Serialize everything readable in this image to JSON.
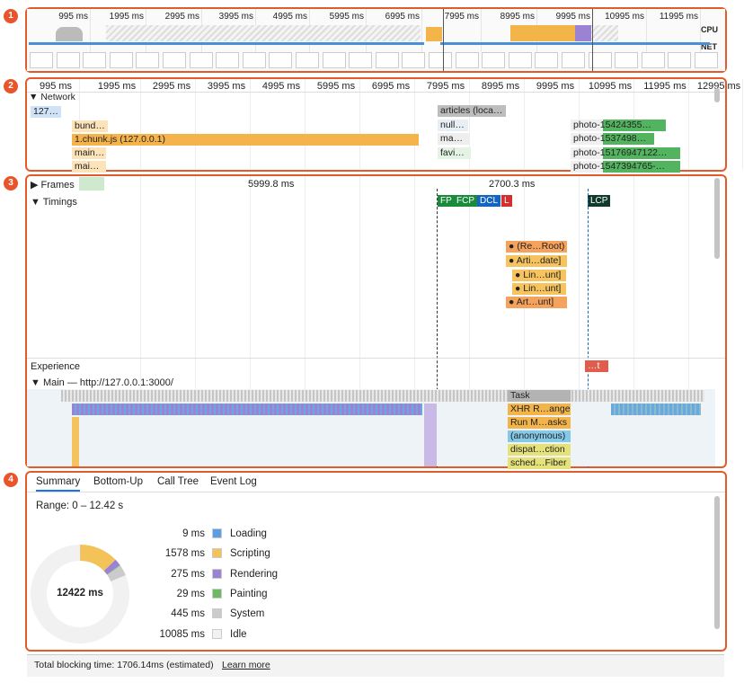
{
  "badges": [
    "1",
    "2",
    "3",
    "4"
  ],
  "overview": {
    "ticks": [
      "995 ms",
      "1995 ms",
      "2995 ms",
      "3995 ms",
      "4995 ms",
      "5995 ms",
      "6995 ms",
      "7995 ms",
      "8995 ms",
      "9995 ms",
      "10995 ms",
      "11995 ms"
    ],
    "cpu": "CPU",
    "net": "NET"
  },
  "network": {
    "ticks": [
      "995 ms",
      "1995 ms",
      "2995 ms",
      "3995 ms",
      "4995 ms",
      "5995 ms",
      "6995 ms",
      "7995 ms",
      "8995 ms",
      "9995 ms",
      "10995 ms",
      "11995 ms",
      "12995 ms"
    ],
    "title": "Network",
    "items": [
      "127…",
      "bund…",
      "1.chunk.js (127.0.0.1)",
      "main…",
      "mai…",
      "articles (loca…",
      "null…",
      "ma…",
      "favi…",
      "photo-15424355…",
      "photo-1537498…",
      "photo-15176947122…",
      "photo-1547394765-…"
    ]
  },
  "flame": {
    "frames": "Frames",
    "frame_times": [
      "5999.8 ms",
      "2700.3 ms"
    ],
    "timings": "Timings",
    "markers": [
      "FP",
      "FCP",
      "DCL",
      "L",
      "LCP"
    ],
    "timing_entries": [
      "(Re…Root)",
      "Arti…date]",
      "Lin…unt]",
      "Lin…unt]",
      "Art…unt]"
    ],
    "experience": "Experience",
    "experience_entry": "…t",
    "main": "Main — http://127.0.0.1:3000/",
    "main_entries": [
      "Task",
      "XHR R…ange",
      "Run M…asks",
      "(anonymous)",
      "dispat…ction",
      "sched…Fiber"
    ]
  },
  "summary": {
    "tabs": [
      "Summary",
      "Bottom-Up",
      "Call Tree",
      "Event Log"
    ],
    "range": "Range: 0 – 12.42 s",
    "total_ms": 12422,
    "total_label": "12422 ms",
    "rows": [
      {
        "ms": 9,
        "time": "9 ms",
        "label": "Loading",
        "color": "#5b9ee6"
      },
      {
        "ms": 1578,
        "time": "1578 ms",
        "label": "Scripting",
        "color": "#f3c35a"
      },
      {
        "ms": 275,
        "time": "275 ms",
        "label": "Rendering",
        "color": "#9b82d3"
      },
      {
        "ms": 29,
        "time": "29 ms",
        "label": "Painting",
        "color": "#6fb866"
      },
      {
        "ms": 445,
        "time": "445 ms",
        "label": "System",
        "color": "#cbcbcb"
      },
      {
        "ms": 10085,
        "time": "10085 ms",
        "label": "Idle",
        "color": "#f1f1f1"
      }
    ],
    "footer": "Total blocking time: 1706.14ms (estimated)",
    "learn_more": "Learn more"
  }
}
